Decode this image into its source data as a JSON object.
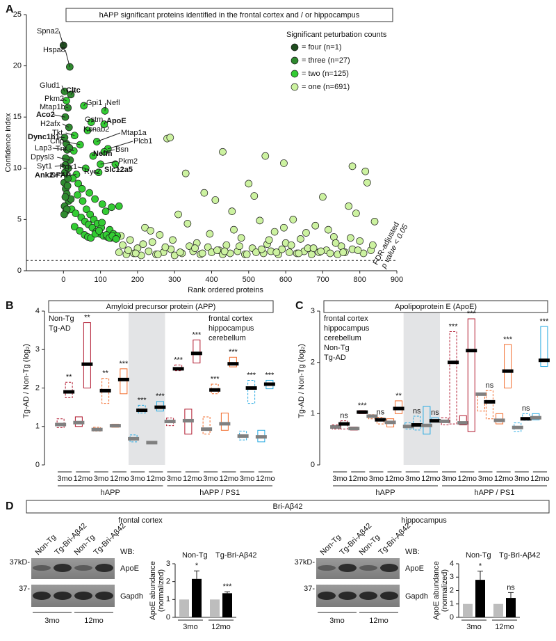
{
  "chart_data": [
    {
      "type": "scatter",
      "panel": "A",
      "title": "hAPP significant proteins identified in the frontal cortex and / or hippocampus",
      "xlabel": "Rank ordered proteins",
      "ylabel": "Confidence index",
      "xlim": [
        -100,
        900
      ],
      "xticks": [
        0,
        100,
        200,
        300,
        400,
        500,
        600,
        700,
        800,
        900
      ],
      "ylim": [
        0,
        25
      ],
      "yticks": [
        0,
        5,
        10,
        15,
        20,
        25
      ],
      "threshold": 1,
      "threshold_color": "#d62828",
      "threshold_label": [
        "FDR-adjusted",
        "p value < 0.05"
      ],
      "legend_title": "Significant peturbation counts",
      "legend": "upper right",
      "series": [
        {
          "name": "= four (n=1)",
          "color": "#1f4d1f",
          "x": [
            0
          ],
          "y": [
            22
          ]
        },
        {
          "name": "= three (n=27)",
          "color": "#2f8a2f",
          "x": [
            17,
            3,
            20,
            12,
            5,
            15,
            3,
            10,
            18,
            5,
            4,
            8,
            2,
            12,
            6,
            9,
            14,
            3,
            7,
            20,
            11,
            5,
            9,
            2,
            16,
            6,
            13
          ],
          "y": [
            19.9,
            17.5,
            17.2,
            15.9,
            15.0,
            14.0,
            13.0,
            11.8,
            10.8,
            10.3,
            9.6,
            12.4,
            8.6,
            9.0,
            8.0,
            7.5,
            6.8,
            6.3,
            5.8,
            7.0,
            8.3,
            7.2,
            6.0,
            5.5,
            12.0,
            11.0,
            10.0
          ]
        },
        {
          "name": "= two (n=125)",
          "color": "#33cc33",
          "x": [
            8,
            30,
            55,
            112,
            75,
            110,
            65,
            45,
            90,
            28,
            120,
            110,
            80,
            100,
            60,
            95,
            140,
            35,
            25,
            40,
            50,
            70,
            85,
            105,
            130,
            22,
            33,
            48,
            58,
            68,
            78,
            88,
            98,
            108,
            118,
            128,
            38,
            52,
            62,
            72,
            82,
            92,
            102,
            114,
            125,
            135,
            145,
            30,
            44,
            57,
            66,
            74,
            86,
            96,
            104,
            116,
            124,
            132,
            142,
            150
          ],
          "y": [
            16.6,
            13.2,
            16.1,
            15.6,
            14.5,
            14.3,
            13.7,
            12.3,
            12.6,
            11.7,
            11.9,
            11.6,
            11.2,
            10.4,
            10.0,
            9.6,
            10.4,
            9.4,
            9.0,
            8.5,
            8.0,
            7.6,
            7.0,
            6.5,
            6.2,
            6.0,
            5.6,
            5.2,
            4.8,
            4.5,
            4.2,
            3.8,
            3.6,
            3.4,
            3.3,
            3.2,
            7.4,
            6.8,
            6.0,
            5.5,
            5.0,
            4.6,
            4.2,
            5.8,
            4.0,
            3.6,
            3.4,
            4.3,
            3.9,
            3.5,
            3.3,
            3.2,
            3.6,
            3.9,
            4.7,
            3.5,
            3.2,
            3.4,
            3.1,
            6.3
          ]
        },
        {
          "name": "= one (n=691)",
          "color": "#ccf2a0",
          "x": [
            150,
            160,
            170,
            180,
            190,
            200,
            210,
            220,
            230,
            240,
            250,
            260,
            270,
            280,
            290,
            300,
            310,
            320,
            330,
            340,
            350,
            360,
            370,
            380,
            390,
            400,
            410,
            420,
            430,
            440,
            450,
            460,
            470,
            480,
            490,
            500,
            510,
            520,
            530,
            540,
            550,
            560,
            570,
            580,
            590,
            600,
            610,
            620,
            630,
            640,
            650,
            660,
            670,
            680,
            690,
            700,
            710,
            720,
            730,
            740,
            750,
            760,
            770,
            780,
            790,
            800,
            810,
            820,
            830,
            840,
            155,
            175,
            195,
            215,
            235,
            255,
            275,
            295,
            315,
            335,
            355,
            375,
            395,
            415,
            435,
            455,
            475,
            495,
            515,
            535,
            555,
            575,
            595,
            615,
            635,
            655,
            675,
            695,
            715,
            735,
            755,
            775,
            795,
            815,
            835,
            288,
            430,
            545,
            595,
            780
          ],
          "y": [
            1.8,
            2.5,
            1.6,
            3.0,
            1.7,
            2.2,
            1.5,
            4.2,
            1.9,
            2.8,
            1.6,
            3.5,
            1.8,
            12.9,
            2.1,
            1.5,
            5.5,
            1.7,
            9.5,
            2.4,
            1.9,
            2.7,
            1.6,
            7.6,
            2.3,
            1.8,
            6.9,
            2.0,
            1.6,
            2.5,
            1.7,
            4.0,
            1.9,
            3.2,
            1.6,
            8.5,
            2.2,
            1.8,
            4.9,
            1.7,
            2.6,
            1.9,
            3.8,
            1.6,
            2.1,
            2.7,
            1.8,
            5.0,
            1.7,
            3.1,
            1.9,
            2.2,
            1.6,
            4.4,
            1.8,
            7.2,
            2.0,
            1.7,
            3.3,
            1.6,
            2.4,
            1.8,
            6.3,
            2.1,
            5.6,
            2.9,
            1.7,
            8.6,
            2.0,
            4.8,
            3.4,
            2.0,
            1.7,
            2.6,
            3.9,
            1.6,
            2.3,
            3.0,
            1.8,
            4.6,
            2.2,
            1.7,
            3.6,
            2.0,
            1.9,
            5.8,
            2.4,
            1.6,
            7.3,
            2.1,
            3.0,
            1.8,
            4.2,
            2.5,
            1.7,
            3.7,
            2.2,
            1.9,
            4.0,
            2.7,
            1.8,
            3.2,
            2.0,
            9.7,
            2.5,
            13.0,
            11.6,
            11.2,
            10.5,
            10.2
          ]
        }
      ],
      "annotations": [
        {
          "text": "Spna2",
          "x": 0,
          "y": 22
        },
        {
          "text": "Hspa8",
          "x": 17,
          "y": 19.9
        },
        {
          "text": "Glud1",
          "x": 3,
          "y": 17.5
        },
        {
          "text": "Cltc",
          "x": 20,
          "y": 17.2,
          "bold": true
        },
        {
          "text": "Pkm2",
          "x": 8,
          "y": 16.6
        },
        {
          "text": "Mtap1b",
          "x": 12,
          "y": 15.9
        },
        {
          "text": "Aco2",
          "x": 5,
          "y": 15.0,
          "bold": true
        },
        {
          "text": "Gpi1",
          "x": 55,
          "y": 16.1
        },
        {
          "text": "Nefl",
          "x": 112,
          "y": 15.6
        },
        {
          "text": "Gstm",
          "x": 75,
          "y": 14.5
        },
        {
          "text": "ApoE",
          "x": 110,
          "y": 14.3,
          "bold": true
        },
        {
          "text": "H2afx",
          "x": 15,
          "y": 14.0
        },
        {
          "text": "Tkt",
          "x": 30,
          "y": 13.2
        },
        {
          "text": "Kcnab2",
          "x": 65,
          "y": 13.7
        },
        {
          "text": "Dync1h1",
          "x": 3,
          "y": 13.0,
          "bold": true
        },
        {
          "text": "Cnp",
          "x": 45,
          "y": 12.3
        },
        {
          "text": "Mtap1a",
          "x": 90,
          "y": 12.6
        },
        {
          "text": "Lap3",
          "x": 10,
          "y": 11.8
        },
        {
          "text": "Tnr",
          "x": 28,
          "y": 11.7
        },
        {
          "text": "Plcb1",
          "x": 120,
          "y": 11.9
        },
        {
          "text": "Bsn",
          "x": 110,
          "y": 11.6
        },
        {
          "text": "Nefm",
          "x": 80,
          "y": 11.2,
          "bold": true
        },
        {
          "text": "Dpysl3",
          "x": 18,
          "y": 10.8
        },
        {
          "text": "Pkm2",
          "x": 100,
          "y": 10.4
        },
        {
          "text": "Syt1",
          "x": 5,
          "y": 10.3
        },
        {
          "text": "Pgk1",
          "x": 60,
          "y": 10.0
        },
        {
          "text": "Ryr2",
          "x": 95,
          "y": 9.6
        },
        {
          "text": "Slc12a5",
          "x": 140,
          "y": 10.4,
          "bold": true
        },
        {
          "text": "Ank2",
          "x": 4,
          "y": 9.6,
          "bold": true
        },
        {
          "text": "GFAP",
          "x": 35,
          "y": 9.4,
          "bold": true
        }
      ]
    },
    {
      "type": "floating-box",
      "panel": "B",
      "title": "Amyloid precursor protein (APP)",
      "ylabel": "Tg-AD / Non-Tg (log₂)",
      "ylim": [
        0,
        4
      ],
      "yticks": [
        0,
        1,
        2,
        3,
        4
      ],
      "categories": [
        "3mo",
        "12mo",
        "3mo",
        "12mo",
        "3mo",
        "12mo",
        "3mo",
        "12mo",
        "3mo",
        "12mo",
        "3mo",
        "12mo"
      ],
      "groups": [
        "hAPP",
        "hAPP / PS1"
      ],
      "shaded": [
        4,
        5
      ],
      "tissues": [
        {
          "name": "frontal cortex",
          "color": "#b0182e"
        },
        {
          "name": "hippocampus",
          "color": "#f26b2a"
        },
        {
          "name": "cerebellum",
          "color": "#29abe2"
        }
      ],
      "tissue_legend": "upper right",
      "series_legend": "upper left",
      "box_tissue": [
        0,
        0,
        1,
        1,
        2,
        2,
        0,
        0,
        1,
        1,
        2,
        2
      ],
      "box_dashed": [
        true,
        false,
        true,
        false,
        true,
        false,
        true,
        false,
        true,
        false,
        true,
        false
      ],
      "series": [
        {
          "name": "Non-Tg",
          "color": "#808080",
          "median": [
            1.05,
            1.1,
            0.92,
            1.02,
            0.68,
            0.58,
            1.13,
            1.15,
            0.93,
            1.07,
            0.75,
            0.73
          ],
          "low": [
            0.97,
            1.0,
            0.88,
            0.98,
            0.6,
            0.56,
            1.02,
            0.8,
            0.8,
            0.9,
            0.65,
            0.6
          ],
          "high": [
            1.2,
            1.25,
            0.98,
            1.06,
            0.78,
            0.6,
            1.22,
            1.45,
            1.25,
            1.35,
            0.88,
            0.9
          ]
        },
        {
          "name": "Tg-AD",
          "color": "#000000",
          "median": [
            1.9,
            2.62,
            1.93,
            2.22,
            1.42,
            1.5,
            2.5,
            2.9,
            1.95,
            2.63,
            2.0,
            2.1
          ],
          "low": [
            1.75,
            2.0,
            1.6,
            1.85,
            1.35,
            1.4,
            2.45,
            2.65,
            1.85,
            2.55,
            1.6,
            1.98
          ],
          "high": [
            2.15,
            3.7,
            2.25,
            2.5,
            1.55,
            1.65,
            2.6,
            3.25,
            2.1,
            2.8,
            2.2,
            2.2
          ],
          "significance": [
            "**",
            "**",
            "**",
            "***",
            "***",
            "***",
            "***",
            "***",
            "***",
            "***",
            "***",
            "***"
          ]
        }
      ]
    },
    {
      "type": "floating-box",
      "panel": "C",
      "title": "Apolipoprotein E (ApoE)",
      "ylabel": "Tg-AD / Non-Tg (log₂)",
      "ylim": [
        0,
        3
      ],
      "yticks": [
        0,
        1,
        2,
        3
      ],
      "categories": [
        "3mo",
        "12mo",
        "3mo",
        "12mo",
        "3mo",
        "12mo",
        "3mo",
        "12mo",
        "3mo",
        "12mo",
        "3mo",
        "12mo"
      ],
      "groups": [
        "hAPP",
        "hAPP / PS1"
      ],
      "shaded": [
        4,
        5
      ],
      "tissues": [
        {
          "name": "frontal cortex",
          "color": "#b0182e"
        },
        {
          "name": "hippocampus",
          "color": "#f26b2a"
        },
        {
          "name": "cerebellum",
          "color": "#29abe2"
        }
      ],
      "tissue_legend": "upper left",
      "series_legend": "upper left",
      "box_tissue": [
        0,
        0,
        1,
        1,
        2,
        2,
        0,
        0,
        1,
        1,
        2,
        2
      ],
      "box_dashed": [
        true,
        false,
        true,
        false,
        true,
        false,
        true,
        false,
        true,
        false,
        true,
        false
      ],
      "series": [
        {
          "name": "Non-Tg",
          "color": "#808080",
          "median": [
            0.74,
            0.71,
            0.95,
            0.83,
            0.75,
            0.77,
            0.85,
            0.82,
            1.38,
            0.87,
            0.73,
            0.92
          ],
          "low": [
            0.7,
            0.68,
            0.9,
            0.74,
            0.7,
            0.6,
            0.78,
            0.78,
            1.05,
            0.8,
            0.65,
            0.88
          ],
          "high": [
            0.78,
            0.74,
            0.98,
            0.9,
            0.82,
            1.14,
            0.92,
            0.96,
            1.4,
            1.0,
            0.82,
            1.0
          ]
        },
        {
          "name": "Tg-AD",
          "color": "#000000",
          "median": [
            0.8,
            1.03,
            0.88,
            1.1,
            0.78,
            0.86,
            2.0,
            2.23,
            1.23,
            1.83,
            0.9,
            2.04
          ],
          "low": [
            0.7,
            1.0,
            0.8,
            1.0,
            0.68,
            0.85,
            0.8,
            0.65,
            0.9,
            1.5,
            0.87,
            1.92
          ],
          "high": [
            0.86,
            1.06,
            0.93,
            1.25,
            0.95,
            0.92,
            2.6,
            2.85,
            1.45,
            2.35,
            1.0,
            2.7
          ],
          "significance": [
            "ns",
            "***",
            "ns",
            "**",
            "ns",
            "ns",
            "***",
            "***",
            "ns",
            "***",
            "ns",
            "***"
          ]
        }
      ]
    },
    {
      "type": "bar",
      "title": "frontal cortex",
      "title_color": "#b0182e",
      "ylabel": [
        "ApoE abundance",
        "(normalized)"
      ],
      "ylim": [
        0,
        3
      ],
      "yticks": [
        0,
        1,
        2,
        3
      ],
      "categories": [
        "3mo",
        "12mo"
      ],
      "series": [
        {
          "name": "Non-Tg",
          "color": "#bdbdbd",
          "values": [
            1,
            1
          ]
        },
        {
          "name": "Tg-Bri-Aβ42",
          "color": "#000000",
          "values": [
            2.15,
            1.35
          ],
          "errors": [
            0.45,
            0.08
          ],
          "significance": [
            "*",
            "***"
          ]
        }
      ]
    },
    {
      "type": "bar",
      "title": "hippocampus",
      "title_color": "#f26b2a",
      "ylabel": [
        "ApoE abundance",
        "(normalized)"
      ],
      "ylim": [
        0,
        4
      ],
      "yticks": [
        0,
        1,
        2,
        3,
        4
      ],
      "categories": [
        "3mo",
        "12mo"
      ],
      "series": [
        {
          "name": "Non-Tg",
          "color": "#bdbdbd",
          "values": [
            1,
            1
          ]
        },
        {
          "name": "Tg-Bri-Aβ42",
          "color": "#000000",
          "values": [
            2.8,
            1.45
          ],
          "errors": [
            0.65,
            0.4
          ],
          "significance": [
            "*",
            "ns"
          ]
        }
      ]
    }
  ],
  "panel_d": {
    "letter": "D",
    "title": "Bri-Aβ42",
    "blots": [
      {
        "lanes": [
          "Non-Tg",
          "Tg-Bri-Aβ42",
          "Non-Tg",
          "Tg-Bri-Aβ42"
        ],
        "wb": "WB:",
        "marker_top": "37kD-",
        "protein_top": "ApoE",
        "marker_bottom": "37-",
        "protein_bottom": "Gapdh",
        "ages": [
          "3mo",
          "12mo"
        ]
      },
      {
        "lanes": [
          "Non-Tg",
          "Tg-Bri-Aβ42",
          "Non-Tg",
          "Tg-Bri-Aβ42"
        ],
        "wb": "WB:",
        "marker_top": "37kD-",
        "protein_top": "ApoE",
        "marker_bottom": "37-",
        "protein_bottom": "Gapdh",
        "ages": [
          "3mo",
          "12mo"
        ]
      }
    ]
  }
}
